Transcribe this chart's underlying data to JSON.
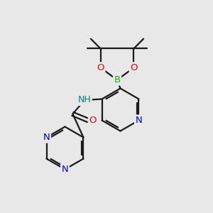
{
  "bg_color": "#e8e8e8",
  "atom_colors": {
    "C": "#000000",
    "N": "#0000ee",
    "O": "#ee0000",
    "B": "#00bb00",
    "NH": "#008080"
  },
  "bond_color": "#1a1a1a",
  "bond_width": 1.6,
  "font_size": 9.5,
  "title": ""
}
